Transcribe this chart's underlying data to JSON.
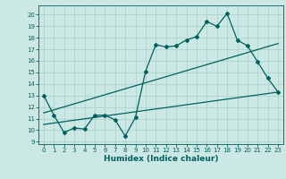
{
  "bg_color": "#cce8e4",
  "grid_color": "#aad4cc",
  "line_color": "#006060",
  "xlabel": "Humidex (Indice chaleur)",
  "xlim": [
    -0.5,
    23.5
  ],
  "ylim": [
    8.8,
    20.8
  ],
  "yticks": [
    9,
    10,
    11,
    12,
    13,
    14,
    15,
    16,
    17,
    18,
    19,
    20
  ],
  "xticks": [
    0,
    1,
    2,
    3,
    4,
    5,
    6,
    7,
    8,
    9,
    10,
    11,
    12,
    13,
    14,
    15,
    16,
    17,
    18,
    19,
    20,
    21,
    22,
    23
  ],
  "line1_x": [
    0,
    1,
    2,
    3,
    4,
    5,
    6,
    7,
    8,
    9,
    10,
    11,
    12,
    13,
    14,
    15,
    16,
    17,
    18,
    19,
    20,
    21,
    22,
    23
  ],
  "line1_y": [
    13.0,
    11.3,
    9.8,
    10.2,
    10.1,
    11.3,
    11.3,
    10.9,
    9.5,
    11.1,
    15.1,
    17.4,
    17.2,
    17.3,
    17.8,
    18.1,
    19.4,
    19.0,
    20.1,
    17.8,
    17.3,
    15.9,
    14.5,
    13.3
  ],
  "line2_x": [
    0,
    23
  ],
  "line2_y": [
    11.5,
    17.5
  ],
  "line3_x": [
    0,
    23
  ],
  "line3_y": [
    10.5,
    13.3
  ],
  "marker": "D",
  "markersize": 2.0,
  "linewidth": 0.9,
  "tick_fontsize": 5.0,
  "xlabel_fontsize": 6.5
}
